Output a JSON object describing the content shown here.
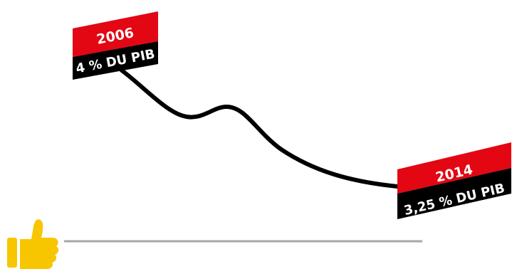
{
  "chart_data": {
    "type": "line",
    "x": [
      "2006",
      "2014"
    ],
    "series": [
      {
        "values": [
          4.0,
          3.25
        ]
      }
    ],
    "labels": [
      {
        "year": "2006",
        "value": "4 % DU PIB"
      },
      {
        "year": "2014",
        "value": "3,25 % DU PIB"
      }
    ],
    "ylim": [
      3.25,
      4.0
    ],
    "grid": false,
    "legend": "none"
  },
  "colors": {
    "line": "#000000",
    "tag_top": "#e30613",
    "tag_bottom": "#000000",
    "tag_text": "#ffffff",
    "baseline": "#a6a6a6",
    "thumb": "#f7c600"
  },
  "icons": {
    "thumb": "thumbs-up-icon"
  }
}
